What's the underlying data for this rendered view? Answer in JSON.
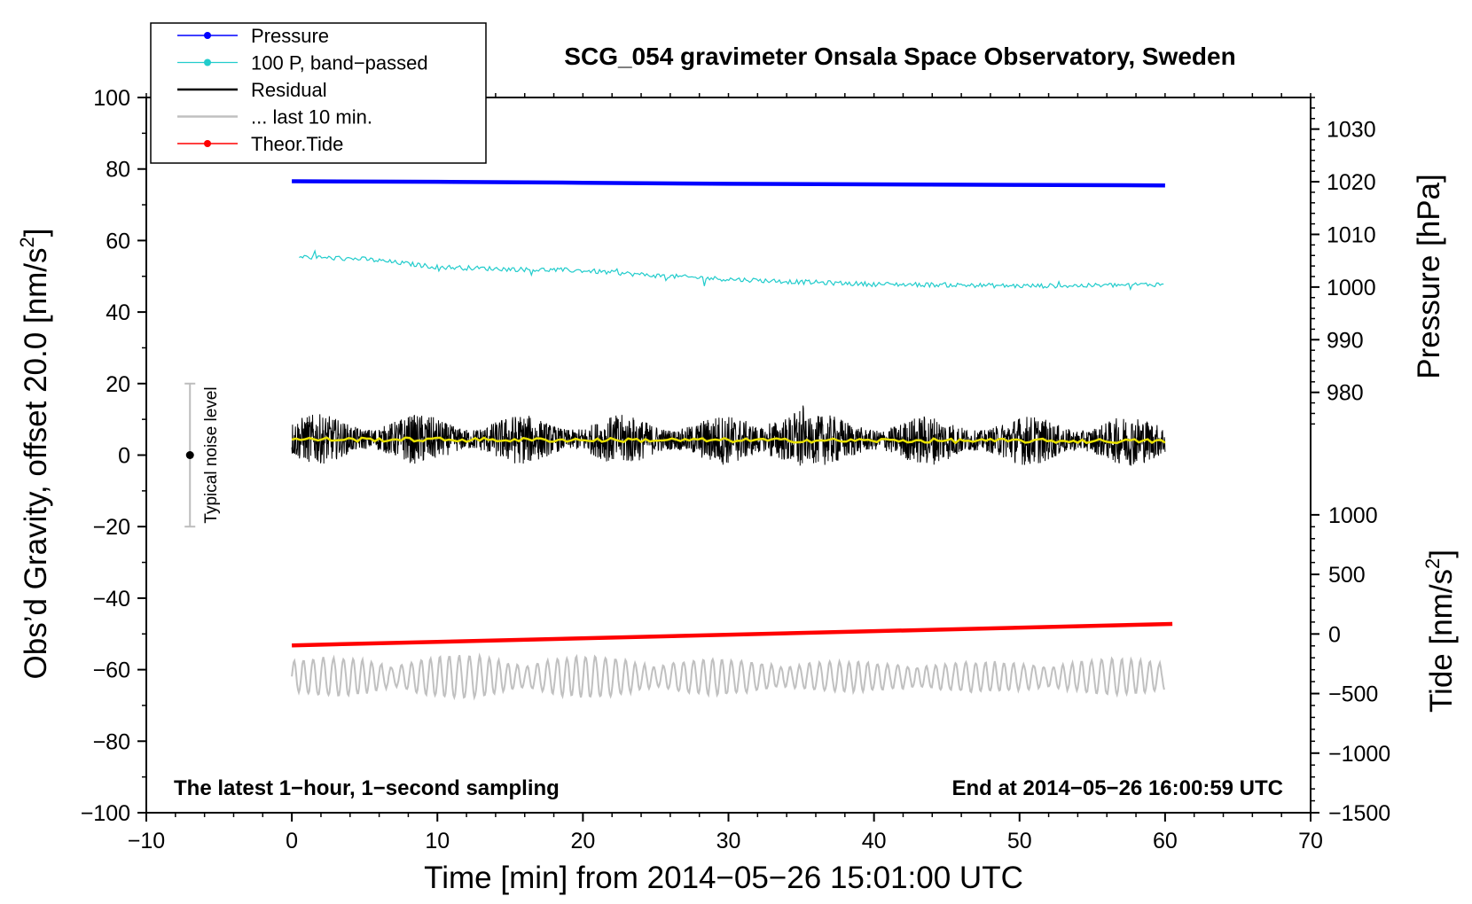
{
  "chart_data": {
    "type": "line",
    "title": "SCG_054 gravimeter Onsala Space Observatory, Sweden",
    "xlabel": "Time [min] from 2014−05−26 15:01:00 UTC",
    "ylabel_left": "Obs’d Gravity, offset 20.0 [nm/s",
    "ylabel_left_sup": "2",
    "ylabel_left_close": "]",
    "ylabel_pressure": "Pressure [hPa]",
    "ylabel_tide": "Tide [nm/s",
    "ylabel_tide_sup": "2",
    "ylabel_tide_close": "]",
    "xlim": [
      -10,
      70
    ],
    "ylim": [
      -100,
      100
    ],
    "x_ticks": [
      -10,
      0,
      10,
      20,
      30,
      40,
      50,
      60,
      70
    ],
    "x_tick_labels": [
      "−10",
      "0",
      "10",
      "20",
      "30",
      "40",
      "50",
      "60",
      "70"
    ],
    "y_ticks": [
      -100,
      -80,
      -60,
      -40,
      -20,
      0,
      20,
      40,
      60,
      80,
      100
    ],
    "y_tick_labels": [
      "−100",
      "−80",
      "−60",
      "−40",
      "−20",
      "0",
      "20",
      "40",
      "60",
      "80",
      "100"
    ],
    "pressure_axis": {
      "ticks": [
        980,
        990,
        1000,
        1010,
        1020,
        1030
      ],
      "tick_labels": [
        "980",
        "990",
        "1000",
        "1010",
        "1020",
        "1030"
      ],
      "range": [
        972.5,
        1036
      ],
      "maps_to_left": [
        6.5,
        100
      ]
    },
    "tide_axis": {
      "ticks": [
        -1500,
        -1000,
        -500,
        0,
        500,
        1000
      ],
      "tick_labels": [
        "−1500",
        "−1000",
        "−500",
        "0",
        "500",
        "1000"
      ],
      "range": [
        -1500,
        1000
      ],
      "maps_to_left": [
        -100,
        -16.7
      ]
    },
    "series": [
      {
        "name": "Pressure",
        "color": "#0000ff",
        "x": [
          0,
          10,
          20,
          30,
          40,
          50,
          60
        ],
        "y": [
          1020.1,
          1020.0,
          1019.8,
          1019.6,
          1019.5,
          1019.4,
          1019.3
        ]
      },
      {
        "name": "100 P, band−passed",
        "color": "#22cccc",
        "x": [
          0,
          5,
          10,
          15,
          20,
          25,
          30,
          35,
          40,
          45,
          50,
          55,
          60
        ],
        "y": [
          55.5,
          54.8,
          52.6,
          52.0,
          51.6,
          50.2,
          49.2,
          48.4,
          47.8,
          47.6,
          47.3,
          47.4,
          47.8
        ]
      },
      {
        "name": "Residual",
        "color": "#000000",
        "x": [
          0,
          60
        ],
        "y": [
          4.5,
          4.0
        ],
        "noise_amplitude": 7,
        "min": -12.5,
        "max": 18.5
      },
      {
        "name": "... last 10 min.",
        "color": "#c0c0c0",
        "x": [
          0,
          60
        ],
        "y": [
          -62,
          -62
        ],
        "amplitude": 6
      },
      {
        "name": "Theor.Tide",
        "color": "#ff0000",
        "x": [
          0,
          60.5
        ],
        "y": [
          -53.2,
          -47.2
        ]
      }
    ],
    "running_mean": {
      "color": "#e8e000",
      "x": [
        0,
        60
      ],
      "y": [
        4.4,
        3.9
      ]
    },
    "noise_level": {
      "label": "Typical noise level",
      "x": -7,
      "center": 0,
      "low": -20,
      "high": 20
    },
    "legend": {
      "position": "top-left",
      "entries": [
        "Pressure",
        "100 P, band−passed",
        "Residual",
        "... last 10 min.",
        "Theor.Tide"
      ]
    },
    "annotations": {
      "left": "The latest 1−hour, 1−second sampling",
      "right": "End at 2014−05−26 16:00:59 UTC"
    }
  }
}
